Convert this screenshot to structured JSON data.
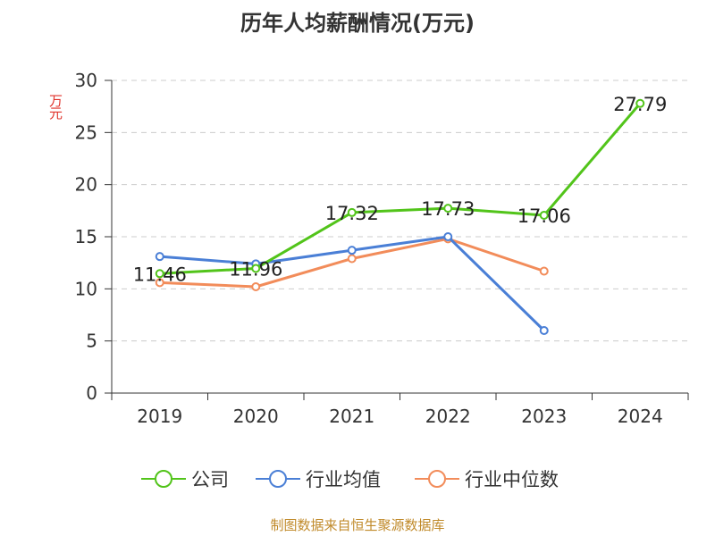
{
  "chart_data": {
    "type": "line",
    "title": "历年人均薪酬情况(万元)",
    "ylabel": "万元",
    "xlabel": "",
    "categories": [
      "2019",
      "2020",
      "2021",
      "2022",
      "2023",
      "2024"
    ],
    "ylim": [
      0,
      30
    ],
    "yticks": [
      0,
      5,
      10,
      15,
      20,
      25,
      30
    ],
    "grid": true,
    "legend_position": "bottom",
    "series": [
      {
        "name": "公司",
        "color": "#52c41a",
        "values": [
          11.46,
          11.96,
          17.32,
          17.73,
          17.06,
          27.79
        ],
        "labels": [
          "11.46",
          "11.96",
          "17.32",
          "17.73",
          "17.06",
          "27.79"
        ]
      },
      {
        "name": "行业均值",
        "color": "#4a7fd6",
        "values": [
          13.1,
          12.4,
          13.7,
          15.0,
          6.0,
          null
        ]
      },
      {
        "name": "行业中位数",
        "color": "#f28c5a",
        "values": [
          10.6,
          10.2,
          12.9,
          14.8,
          11.7,
          null
        ]
      }
    ]
  },
  "footer": "制图数据来自恒生聚源数据库"
}
